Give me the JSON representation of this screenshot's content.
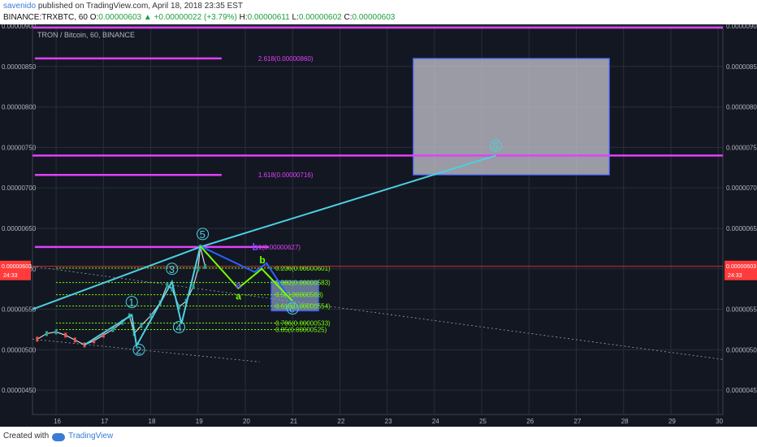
{
  "header": {
    "author": "savenido",
    "published": "published on TradingView.com, April 18, 2018 23:35 EST",
    "symbol": "BINANCE:TRXBTC, 60",
    "o_label": "O:",
    "open": "0.00000603",
    "change": "▲ +0.00000022 (+3.79%)",
    "h_label": "H:",
    "high": "0.00000611",
    "l_label": "L:",
    "low": "0.00000602",
    "c_label": "C:",
    "close": "0.00000603"
  },
  "footer": {
    "created_with": "Created with",
    "brand": "TradingView"
  },
  "colors": {
    "background": "#131722",
    "grid": "#2a2e39",
    "axis_text": "#b2b5be",
    "magenta": "#e040fb",
    "wave": "#4dd0e1",
    "green": "#76ff03",
    "purple": "#7c4dff",
    "red": "#ff3b3b",
    "target_box": "#c8c8d0"
  },
  "chart_data": {
    "type": "line",
    "title": "TRON / Bitcoin, 60, BINANCE",
    "x_ticks": [
      "16",
      "17",
      "18",
      "19",
      "20",
      "21",
      "22",
      "23",
      "24",
      "25",
      "26",
      "27",
      "28",
      "29",
      "30"
    ],
    "x_range": [
      15.5,
      30.1
    ],
    "y_ticks": [
      "0.00000450",
      "0.00000500",
      "0.00000550",
      "0.00000600",
      "0.00000650",
      "0.00000700",
      "0.00000750",
      "0.00000800",
      "0.00000850",
      "0.00000900"
    ],
    "y_range": [
      4.2e-06,
      9e-06
    ],
    "last_price": {
      "label": "0.00000603",
      "countdown": "24:33",
      "value": 6.03e-06
    },
    "price_series": [
      [
        15.6,
        5.13e-06
      ],
      [
        15.8,
        5.2e-06
      ],
      [
        16.0,
        5.22e-06
      ],
      [
        16.2,
        5.18e-06
      ],
      [
        16.4,
        5.12e-06
      ],
      [
        16.6,
        5.06e-06
      ],
      [
        16.8,
        5.11e-06
      ],
      [
        17.0,
        5.18e-06
      ],
      [
        17.2,
        5.25e-06
      ],
      [
        17.4,
        5.34e-06
      ],
      [
        17.55,
        5.42e-06
      ],
      [
        17.65,
        5.2e-06
      ],
      [
        17.8,
        5.3e-06
      ],
      [
        18.0,
        5.42e-06
      ],
      [
        18.2,
        5.58e-06
      ],
      [
        18.35,
        5.8e-06
      ],
      [
        18.45,
        5.75e-06
      ],
      [
        18.6,
        5.53e-06
      ],
      [
        18.75,
        5.6e-06
      ],
      [
        18.9,
        5.78e-06
      ],
      [
        19.0,
        6e-06
      ],
      [
        19.05,
        6.27e-06
      ],
      [
        19.15,
        6.03e-06
      ]
    ],
    "horizontal_levels": [
      {
        "value": 8.6e-06,
        "label": "2.618(0.00000860)",
        "x_start": 15.55,
        "x_end": 19.5
      },
      {
        "value": 7.16e-06,
        "label": "1.618(0.00000716)",
        "x_start": 15.55,
        "x_end": 19.5
      },
      {
        "value": 6.27e-06,
        "label": "1(0.00000627)",
        "x_start": 15.55,
        "x_end": 20.5
      },
      {
        "value": 7.4e-06,
        "label": "",
        "x_start": 15.5,
        "x_end": 30.1
      },
      {
        "value": 8.98e-06,
        "label": "",
        "x_start": 15.5,
        "x_end": 30.1
      }
    ],
    "fib_retracements": [
      {
        "value": 6.01e-06,
        "label": "0.236(0.00000601)"
      },
      {
        "value": 5.83e-06,
        "label": "0.382(0.00000583)"
      },
      {
        "value": 5.68e-06,
        "label": "0.5(0.00000568)"
      },
      {
        "value": 5.54e-06,
        "label": "0.618(0.00000554)"
      },
      {
        "value": 5.33e-06,
        "label": "0.786(0.00000533)"
      },
      {
        "value": 5.25e-06,
        "label": "0.85(0.00000525)"
      }
    ],
    "wave_path": [
      [
        15.5,
        5.5e-06
      ],
      [
        19.05,
        6.27e-06
      ],
      [
        25.3,
        7.4e-06
      ]
    ],
    "impulse_wave": [
      [
        16.6,
        5.06e-06
      ],
      [
        17.6,
        5.43e-06
      ],
      [
        17.7,
        5.05e-06
      ],
      [
        18.45,
        5.84e-06
      ],
      [
        18.65,
        5.32e-06
      ],
      [
        19.05,
        6.28e-06
      ]
    ],
    "correction_wave": [
      [
        19.05,
        6.28e-06
      ],
      [
        20.2,
        5.96e-06
      ],
      [
        20.45,
        6.07e-06
      ],
      [
        21.0,
        5.58e-06
      ]
    ],
    "green_wave": [
      [
        19.05,
        6.28e-06
      ],
      [
        19.85,
        5.76e-06
      ],
      [
        20.35,
        6e-06
      ],
      [
        21.0,
        5.6e-06
      ]
    ],
    "wave_labels": [
      {
        "text": "1",
        "x": 17.6,
        "y": 5.59e-06
      },
      {
        "text": "2",
        "x": 17.75,
        "y": 5e-06
      },
      {
        "text": "3",
        "x": 18.45,
        "y": 6e-06
      },
      {
        "text": "4",
        "x": 18.6,
        "y": 5.28e-06
      },
      {
        "text": "5",
        "x": 19.1,
        "y": 6.43e-06
      },
      {
        "text": "5",
        "x": 25.3,
        "y": 7.52e-06
      },
      {
        "text": "c",
        "x": 21.0,
        "y": 5.51e-06
      }
    ],
    "letter_labels": [
      {
        "text": "b",
        "x": 20.2,
        "y": 6.27e-06,
        "color": "purple"
      },
      {
        "text": "b",
        "x": 20.35,
        "y": 6.11e-06,
        "color": "green"
      },
      {
        "text": "a",
        "x": 19.85,
        "y": 5.8e-06,
        "color": "purple"
      },
      {
        "text": "a",
        "x": 19.85,
        "y": 5.66e-06,
        "color": "green"
      }
    ],
    "zones": [
      {
        "x0": 23.55,
        "x1": 27.7,
        "y0": 7.16e-06,
        "y1": 8.6e-06,
        "kind": "target"
      },
      {
        "x0": 20.55,
        "x1": 21.55,
        "y0": 5.48e-06,
        "y1": 5.85e-06,
        "kind": "retrace"
      }
    ],
    "trendlines": [
      {
        "from": [
          15.5,
          6.03e-06
        ],
        "to": [
          30.1,
          4.88e-06
        ],
        "dashed": true
      },
      {
        "from": [
          15.5,
          5.13e-06
        ],
        "to": [
          20.3,
          4.85e-06
        ],
        "dashed": true
      }
    ]
  }
}
